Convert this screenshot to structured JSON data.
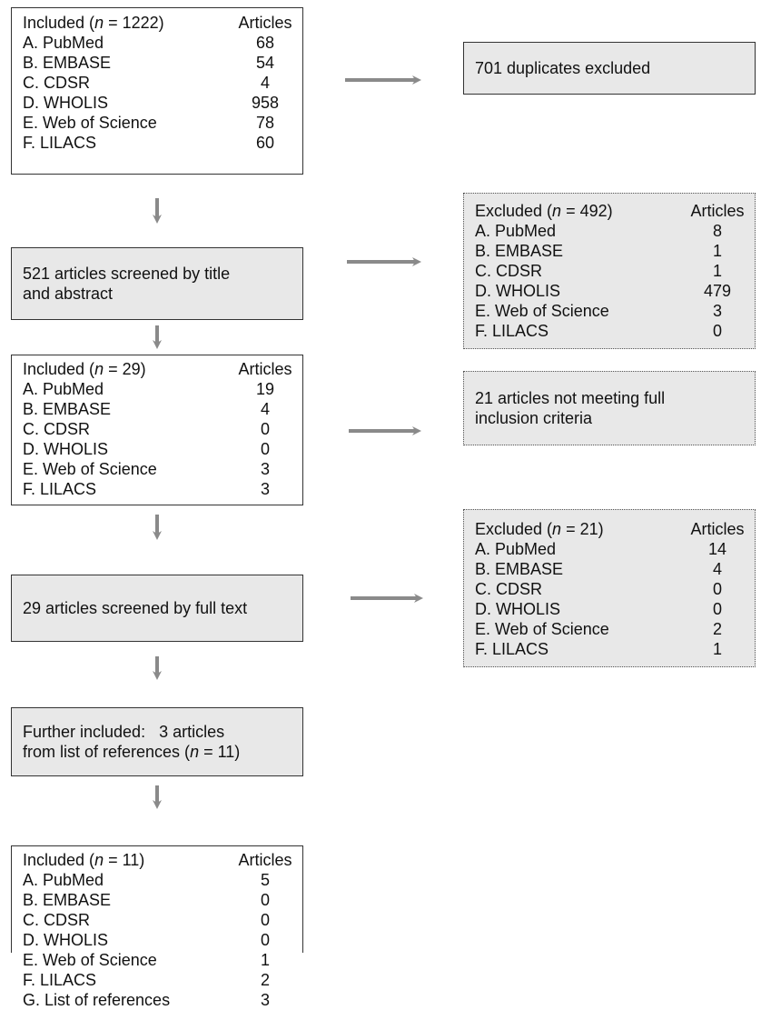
{
  "col_header": "Articles",
  "box1": {
    "title_pre": "Included (",
    "n_symbol": "n",
    "title_post": " = 1222)",
    "rows": [
      {
        "label": "A. PubMed",
        "value": "68"
      },
      {
        "label": "B. EMBASE",
        "value": "54"
      },
      {
        "label": "C. CDSR",
        "value": "4"
      },
      {
        "label": "D. WHOLIS",
        "value": "958"
      },
      {
        "label": "E. Web of Science",
        "value": "78"
      },
      {
        "label": "F. LILACS",
        "value": "60"
      }
    ]
  },
  "dup_box": {
    "text": "701 duplicates excluded"
  },
  "screen1": {
    "text": "521 articles screened by title and abstract"
  },
  "excl1": {
    "title_pre": "Excluded (",
    "n_symbol": "n",
    "title_post": " = 492)",
    "rows": [
      {
        "label": "A. PubMed",
        "value": "8"
      },
      {
        "label": "B. EMBASE",
        "value": "1"
      },
      {
        "label": "C. CDSR",
        "value": "1"
      },
      {
        "label": "D. WHOLIS",
        "value": "479"
      },
      {
        "label": "E. Web of Science",
        "value": "3"
      },
      {
        "label": "F. LILACS",
        "value": "0"
      }
    ]
  },
  "box2": {
    "title_pre": "Included (",
    "n_symbol": "n",
    "title_post": " = 29)",
    "rows": [
      {
        "label": "A. PubMed",
        "value": "19"
      },
      {
        "label": "B. EMBASE",
        "value": "4"
      },
      {
        "label": "C. CDSR",
        "value": "0"
      },
      {
        "label": "D. WHOLIS",
        "value": "0"
      },
      {
        "label": "E. Web of Science",
        "value": "3"
      },
      {
        "label": "F. LILACS",
        "value": "3"
      }
    ]
  },
  "notmeet": {
    "text": "21 articles not meeting full inclusion criteria"
  },
  "screen2": {
    "text": "29 articles screened by full text"
  },
  "excl2": {
    "title_pre": "Excluded (",
    "n_symbol": "n",
    "title_post": " = 21)",
    "rows": [
      {
        "label": "A. PubMed",
        "value": "14"
      },
      {
        "label": "B. EMBASE",
        "value": "4"
      },
      {
        "label": "C. CDSR",
        "value": "0"
      },
      {
        "label": "D. WHOLIS",
        "value": "0"
      },
      {
        "label": "E. Web of Science",
        "value": "2"
      },
      {
        "label": "F. LILACS",
        "value": "1"
      }
    ]
  },
  "further": {
    "line1": "Further included:   3 articles",
    "line2_pre": "from list of references (",
    "n_symbol": "n",
    "line2_post": " = 11)"
  },
  "box3": {
    "title_pre": "Included (",
    "n_symbol": "n",
    "title_post": " = 11)",
    "rows": [
      {
        "label": "A. PubMed",
        "value": "5"
      },
      {
        "label": "B. EMBASE",
        "value": "0"
      },
      {
        "label": "C. CDSR",
        "value": "0"
      },
      {
        "label": "D. WHOLIS",
        "value": "0"
      },
      {
        "label": "E. Web of Science",
        "value": "1"
      },
      {
        "label": "F. LILACS",
        "value": "2"
      },
      {
        "label": "G. List of references",
        "value": "3"
      }
    ]
  },
  "colors": {
    "arrow": "#8a8a8a",
    "box_fill": "#e8e8e8",
    "border": "#333333"
  }
}
